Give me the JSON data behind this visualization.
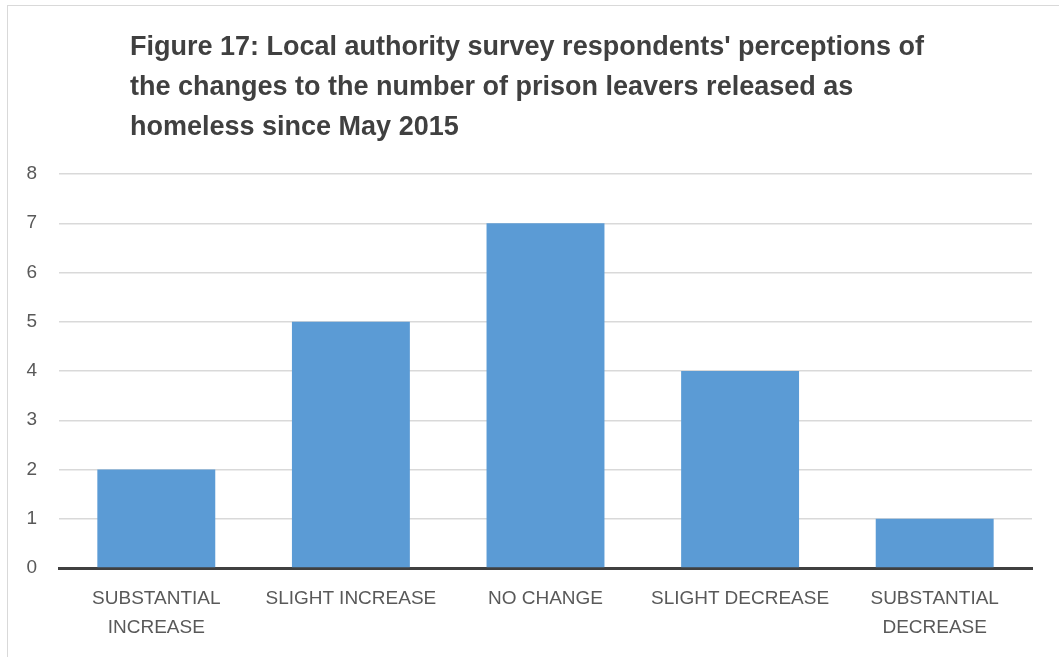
{
  "chart_data": {
    "type": "bar",
    "title": "Figure 17: Local authority survey respondents' perceptions of the changes to the number of prison leavers released as homeless since May 2015",
    "categories": [
      "SUBSTANTIAL INCREASE",
      "SLIGHT INCREASE",
      "NO CHANGE",
      "SLIGHT DECREASE",
      "SUBSTANTIAL DECREASE"
    ],
    "values": [
      2,
      5,
      7,
      4,
      1
    ],
    "color": "#5b9bd5",
    "ylim": [
      0,
      8
    ],
    "yticks": [
      0,
      1,
      2,
      3,
      4,
      5,
      6,
      7,
      8
    ],
    "grid": "y"
  }
}
